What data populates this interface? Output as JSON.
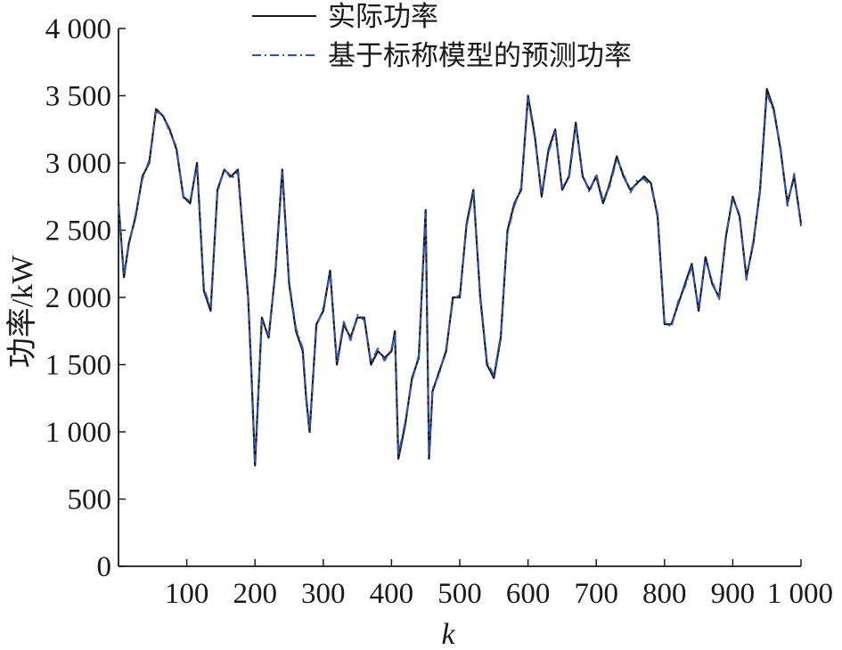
{
  "chart_data": {
    "type": "line",
    "xlabel": "k",
    "ylabel": "功率/kW",
    "xlim": [
      0,
      1000
    ],
    "ylim": [
      0,
      4000
    ],
    "x_ticks": [
      100,
      200,
      300,
      400,
      500,
      600,
      700,
      800,
      900,
      1000
    ],
    "x_tick_labels": [
      "100",
      "200",
      "300",
      "400",
      "500",
      "600",
      "700",
      "800",
      "900",
      "1 000"
    ],
    "y_ticks": [
      0,
      500,
      1000,
      1500,
      2000,
      2500,
      3000,
      3500,
      4000
    ],
    "y_tick_labels": [
      "0",
      "500",
      "1 000",
      "1 500",
      "2 000",
      "2 500",
      "3 000",
      "3 500",
      "4 000"
    ],
    "legend_position": "top-center",
    "x": [
      0,
      8,
      15,
      25,
      35,
      45,
      55,
      65,
      75,
      85,
      95,
      105,
      115,
      125,
      135,
      145,
      155,
      165,
      175,
      185,
      190,
      195,
      200,
      210,
      220,
      230,
      240,
      250,
      260,
      270,
      275,
      280,
      290,
      300,
      310,
      320,
      330,
      340,
      350,
      360,
      370,
      380,
      390,
      400,
      405,
      410,
      420,
      430,
      440,
      450,
      455,
      460,
      470,
      480,
      490,
      500,
      510,
      520,
      530,
      540,
      550,
      560,
      570,
      580,
      590,
      600,
      610,
      620,
      630,
      640,
      650,
      660,
      670,
      680,
      690,
      700,
      710,
      720,
      730,
      740,
      750,
      760,
      770,
      780,
      790,
      800,
      810,
      820,
      830,
      840,
      850,
      860,
      870,
      880,
      890,
      900,
      910,
      920,
      930,
      940,
      950,
      960,
      970,
      980,
      990,
      1000
    ],
    "series": [
      {
        "name": "实际功率",
        "color": "#1a1a1a",
        "style": "solid",
        "values": [
          2700,
          2150,
          2400,
          2600,
          2900,
          3000,
          3400,
          3350,
          3250,
          3100,
          2750,
          2700,
          3000,
          2050,
          1900,
          2800,
          2950,
          2900,
          2950,
          2300,
          2000,
          1400,
          750,
          1850,
          1700,
          2200,
          2950,
          2100,
          1750,
          1600,
          1250,
          1000,
          1800,
          1900,
          2200,
          1500,
          1800,
          1700,
          1850,
          1850,
          1500,
          1600,
          1550,
          1600,
          1750,
          800,
          1050,
          1400,
          1550,
          2650,
          800,
          1300,
          1450,
          1600,
          2000,
          2000,
          2550,
          2800,
          2000,
          1500,
          1400,
          1700,
          2500,
          2700,
          2800,
          3500,
          3200,
          2750,
          3100,
          3250,
          2800,
          2900,
          3300,
          2900,
          2800,
          2900,
          2700,
          2850,
          3050,
          2900,
          2800,
          2850,
          2900,
          2850,
          2600,
          1800,
          1800,
          1950,
          2100,
          2250,
          1900,
          2300,
          2100,
          2000,
          2450,
          2750,
          2600,
          2150,
          2400,
          2800,
          3550,
          3400,
          3100,
          2700,
          2900,
          2550
        ]
      },
      {
        "name": "基于标称模型的预测功率",
        "color": "#2f56b5",
        "style": "dashdot",
        "values": [
          2680,
          2170,
          2380,
          2620,
          2880,
          3020,
          3380,
          3360,
          3230,
          3120,
          2740,
          2720,
          2980,
          2070,
          1920,
          2780,
          2960,
          2880,
          2930,
          2320,
          2020,
          1420,
          780,
          1830,
          1720,
          2180,
          2930,
          2120,
          1770,
          1620,
          1270,
          1020,
          1780,
          1920,
          2180,
          1520,
          1820,
          1680,
          1870,
          1830,
          1520,
          1620,
          1530,
          1620,
          1730,
          830,
          1070,
          1380,
          1570,
          2620,
          820,
          1320,
          1430,
          1620,
          1980,
          2020,
          2530,
          2780,
          2020,
          1520,
          1420,
          1720,
          2480,
          2680,
          2820,
          3480,
          3180,
          2770,
          3080,
          3230,
          2820,
          2880,
          3280,
          2920,
          2780,
          2920,
          2720,
          2830,
          3030,
          2920,
          2780,
          2870,
          2880,
          2830,
          2620,
          1820,
          1780,
          1970,
          2080,
          2230,
          1920,
          2280,
          2120,
          1980,
          2470,
          2730,
          2620,
          2130,
          2420,
          2780,
          3520,
          3380,
          3120,
          2680,
          2920,
          2530
        ]
      }
    ]
  }
}
